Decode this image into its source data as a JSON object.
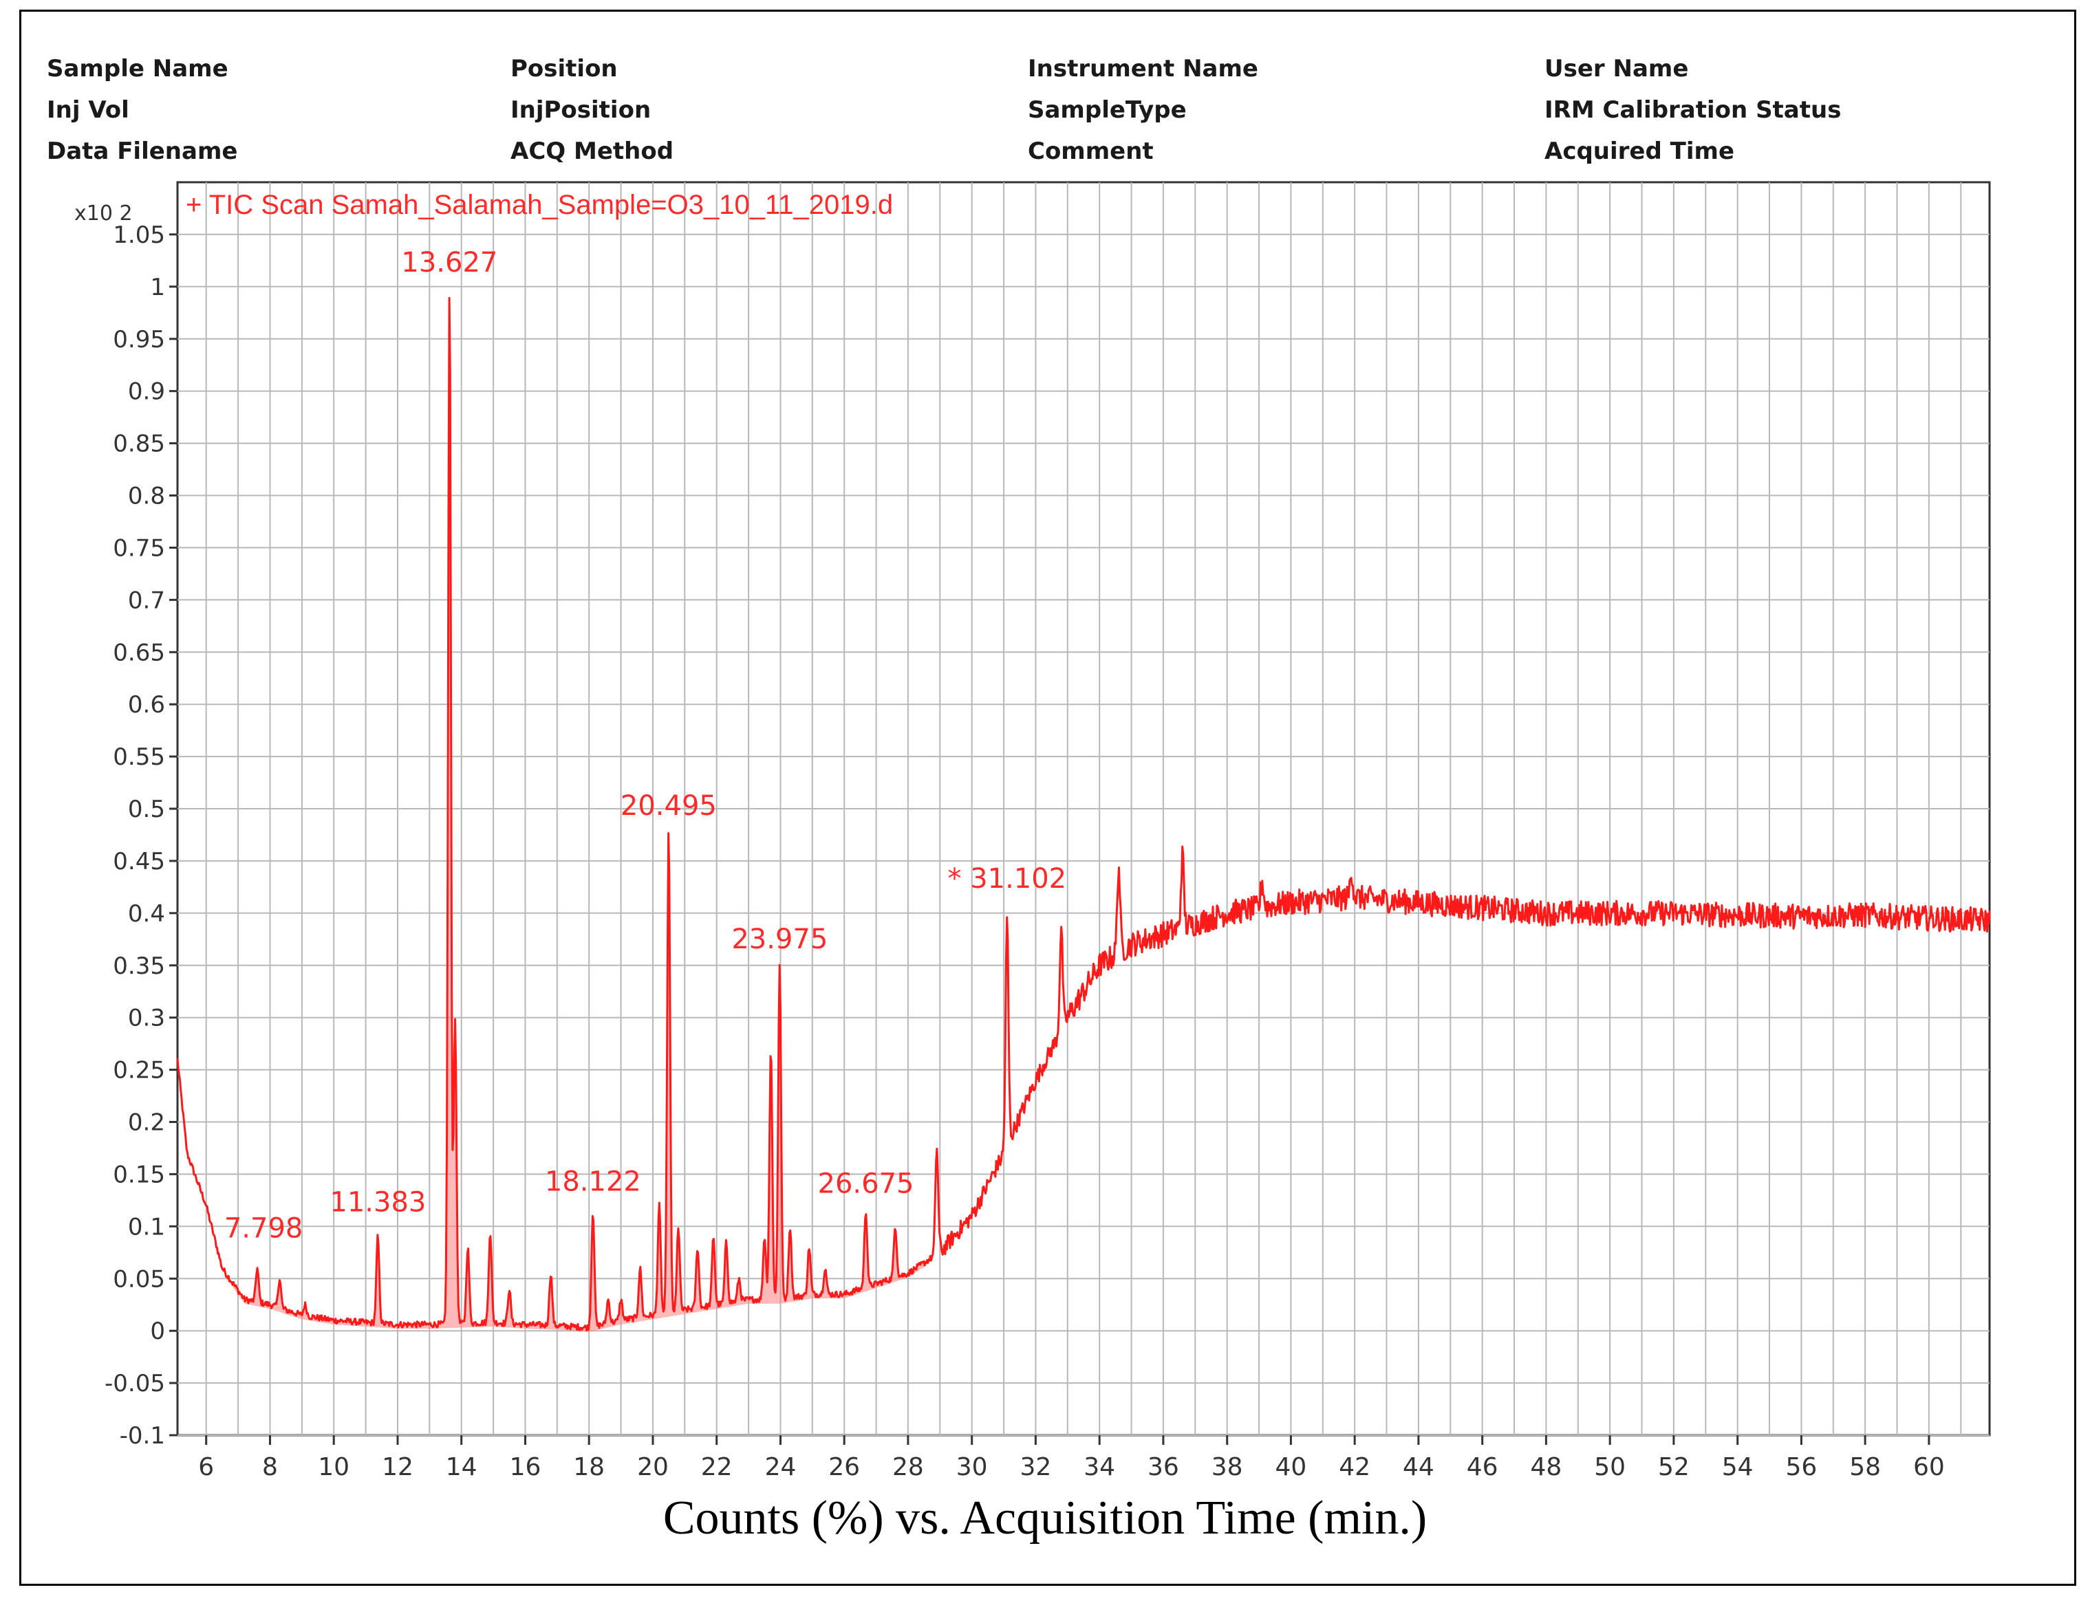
{
  "header": {
    "fields": [
      [
        "Sample Name",
        "Position",
        "Instrument Name",
        "User Name"
      ],
      [
        "Inj Vol",
        "InjPosition",
        "SampleType",
        "IRM Calibration Status"
      ],
      [
        "Data Filename",
        "ACQ Method",
        "Comment",
        "Acquired Time"
      ]
    ]
  },
  "colors": {
    "trace": "#ff1a1a",
    "grid": "#b8b8b8",
    "axis": "#333333",
    "label": "#ff2a2a"
  },
  "chart_data": {
    "type": "line",
    "title": "+ TIC Scan Samah_Salamah_Sample=O3_10_11_2019.d",
    "multiplier": "x10 2",
    "xlabel": "Counts (%) vs. Acquisition Time (min.)",
    "ylabel": "",
    "xlim": [
      5.1,
      61.9
    ],
    "ylim": [
      -0.1,
      1.1
    ],
    "grid": true,
    "x_ticks": [
      6,
      8,
      10,
      12,
      14,
      16,
      18,
      20,
      22,
      24,
      26,
      28,
      30,
      32,
      34,
      36,
      38,
      40,
      42,
      44,
      46,
      48,
      50,
      52,
      54,
      56,
      58,
      60
    ],
    "y_ticks": [
      "-0.1",
      "-0.05",
      "0",
      "0.05",
      "0.1",
      "0.15",
      "0.2",
      "0.25",
      "0.3",
      "0.35",
      "0.4",
      "0.45",
      "0.5",
      "0.55",
      "0.6",
      "0.65",
      "0.7",
      "0.75",
      "0.8",
      "0.85",
      "0.9",
      "0.95",
      "1",
      "1.05"
    ],
    "baseline": [
      [
        5.1,
        0.26
      ],
      [
        5.4,
        0.17
      ],
      [
        6.0,
        0.12
      ],
      [
        6.5,
        0.06
      ],
      [
        7.2,
        0.03
      ],
      [
        8.0,
        0.025
      ],
      [
        9.0,
        0.015
      ],
      [
        10.0,
        0.01
      ],
      [
        11.0,
        0.008
      ],
      [
        12.0,
        0.006
      ],
      [
        13.0,
        0.006
      ],
      [
        14.0,
        0.007
      ],
      [
        15.0,
        0.008
      ],
      [
        16.0,
        0.006
      ],
      [
        17.0,
        0.005
      ],
      [
        18.0,
        0.003
      ],
      [
        19.0,
        0.01
      ],
      [
        20.0,
        0.015
      ],
      [
        21.0,
        0.02
      ],
      [
        22.0,
        0.025
      ],
      [
        23.0,
        0.03
      ],
      [
        24.0,
        0.03
      ],
      [
        25.0,
        0.035
      ],
      [
        26.0,
        0.035
      ],
      [
        27.0,
        0.045
      ],
      [
        28.0,
        0.055
      ],
      [
        29.0,
        0.075
      ],
      [
        30.0,
        0.11
      ],
      [
        31.0,
        0.17
      ],
      [
        32.0,
        0.24
      ],
      [
        33.0,
        0.3
      ],
      [
        34.0,
        0.35
      ],
      [
        35.0,
        0.37
      ],
      [
        36.0,
        0.38
      ],
      [
        37.0,
        0.39
      ],
      [
        38.0,
        0.4
      ],
      [
        40.0,
        0.41
      ],
      [
        42.0,
        0.415
      ],
      [
        44.0,
        0.41
      ],
      [
        46.0,
        0.405
      ],
      [
        48.0,
        0.4
      ],
      [
        50.0,
        0.4
      ],
      [
        52.0,
        0.4
      ],
      [
        54.0,
        0.398
      ],
      [
        56.0,
        0.397
      ],
      [
        58.0,
        0.398
      ],
      [
        60.0,
        0.395
      ],
      [
        61.9,
        0.393
      ]
    ],
    "peaks": [
      [
        7.6,
        0.06
      ],
      [
        8.3,
        0.05
      ],
      [
        9.1,
        0.025
      ],
      [
        11.38,
        0.09
      ],
      [
        13.627,
        1.0
      ],
      [
        13.8,
        0.3
      ],
      [
        14.2,
        0.08
      ],
      [
        14.9,
        0.095
      ],
      [
        15.5,
        0.04
      ],
      [
        16.8,
        0.055
      ],
      [
        18.122,
        0.115
      ],
      [
        18.6,
        0.03
      ],
      [
        19.0,
        0.03
      ],
      [
        19.6,
        0.06
      ],
      [
        20.2,
        0.12
      ],
      [
        20.495,
        0.48
      ],
      [
        20.8,
        0.1
      ],
      [
        21.4,
        0.08
      ],
      [
        21.9,
        0.09
      ],
      [
        22.3,
        0.085
      ],
      [
        22.7,
        0.05
      ],
      [
        23.5,
        0.09
      ],
      [
        23.7,
        0.27
      ],
      [
        23.975,
        0.35
      ],
      [
        24.3,
        0.1
      ],
      [
        24.9,
        0.08
      ],
      [
        25.4,
        0.06
      ],
      [
        26.675,
        0.115
      ],
      [
        27.6,
        0.1
      ],
      [
        28.9,
        0.175
      ],
      [
        31.102,
        0.395
      ],
      [
        32.8,
        0.385
      ],
      [
        34.6,
        0.445
      ],
      [
        36.6,
        0.455
      ],
      [
        39.1,
        0.43
      ],
      [
        41.9,
        0.44
      ]
    ],
    "annotations": [
      {
        "text": "7.798",
        "x": 7.798,
        "y": 0.08
      },
      {
        "text": "11.383",
        "x": 11.383,
        "y": 0.105
      },
      {
        "text": "13.627",
        "x": 13.627,
        "y": 1.005
      },
      {
        "text": "18.122",
        "x": 18.122,
        "y": 0.125
      },
      {
        "text": "20.495",
        "x": 20.495,
        "y": 0.485
      },
      {
        "text": "23.975",
        "x": 23.975,
        "y": 0.357
      },
      {
        "text": "26.675",
        "x": 26.675,
        "y": 0.123
      },
      {
        "text": "* 31.102",
        "x": 31.102,
        "y": 0.415
      }
    ]
  }
}
